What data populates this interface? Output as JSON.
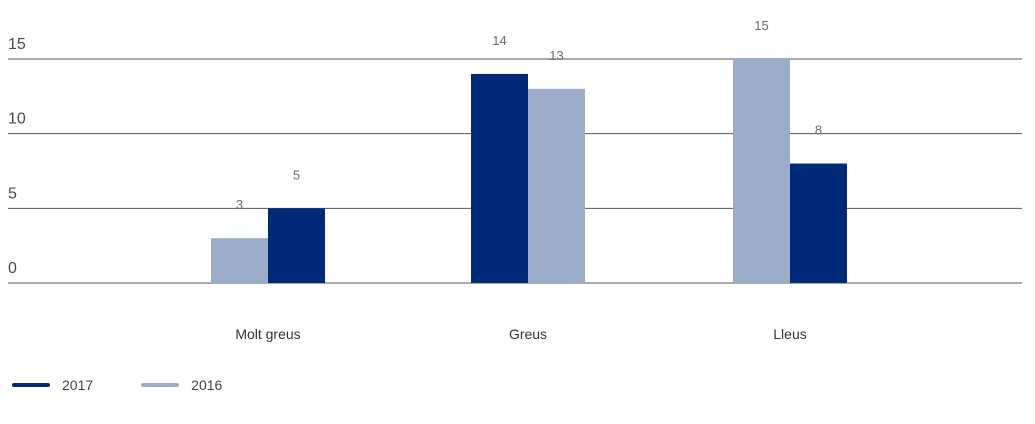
{
  "chart_data": {
    "type": "bar",
    "categories": [
      "Molt greus",
      "Greus",
      "Lleus"
    ],
    "series": [
      {
        "name": "2017",
        "color": "#002a78",
        "values": [
          5,
          14,
          8
        ]
      },
      {
        "name": "2016",
        "color": "#9badcb",
        "values": [
          3,
          13,
          15
        ]
      }
    ],
    "bar_order": [
      [
        "2016",
        "2017"
      ],
      [
        "2017",
        "2016"
      ],
      [
        "2016",
        "2017"
      ]
    ],
    "title": "",
    "xlabel": "",
    "ylabel": "",
    "ylim": [
      0,
      15
    ],
    "yticks": [
      0,
      5,
      10,
      15
    ],
    "grid": true,
    "legend": "bottom-left"
  }
}
